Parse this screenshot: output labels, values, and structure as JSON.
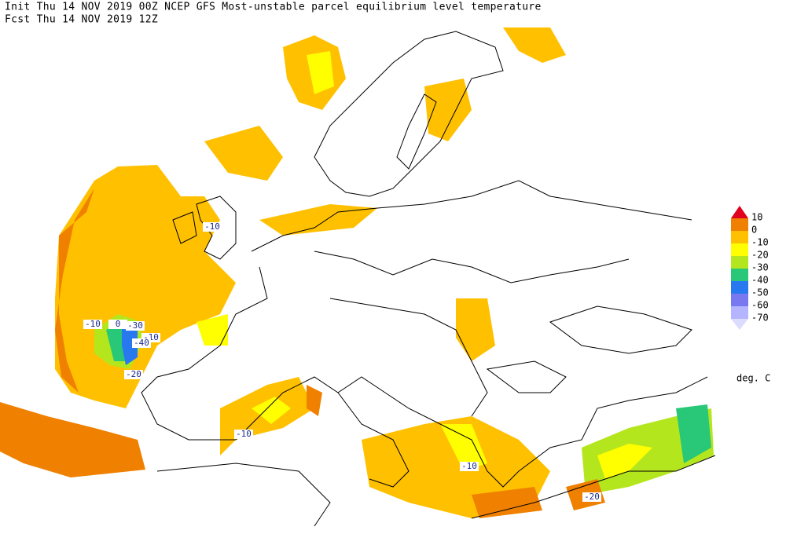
{
  "header": {
    "line1": "Init  Thu 14 NOV 2019 00Z   NCEP GFS Most-unstable parcel equilibrium level temperature",
    "line2": "Fcst Thu 14 NOV 2019 12Z"
  },
  "legend": {
    "top_color": "#e0001e",
    "colors": [
      "#f08000",
      "#ffc000",
      "#ffff00",
      "#b4e61e",
      "#28c878",
      "#2878f0",
      "#7878f0",
      "#b4b4ff"
    ],
    "bottom_color": "#dcdcff",
    "labels": [
      "10",
      "0",
      "-10",
      "-20",
      "-30",
      "-40",
      "-50",
      "-60",
      "-70"
    ],
    "units": "deg. C"
  },
  "contour_labels": [
    "-10",
    "-10",
    "0",
    "-30",
    "-10",
    "-40",
    "-20",
    "-10",
    "-10",
    "-20"
  ]
}
